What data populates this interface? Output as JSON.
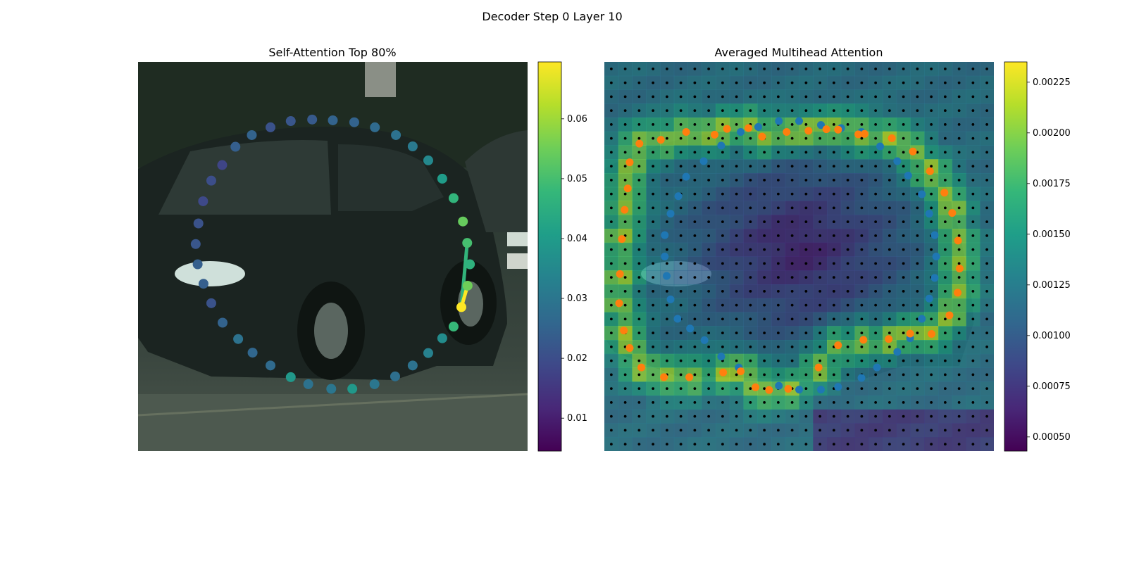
{
  "figure": {
    "suptitle": "Decoder Step 0 Layer 10"
  },
  "colormap_stops": [
    "#440154",
    "#482878",
    "#3e4989",
    "#31688e",
    "#26828e",
    "#1f9e89",
    "#35b779",
    "#6ece58",
    "#b5de2b",
    "#fde725"
  ],
  "chart_data": [
    {
      "type": "scatter",
      "title": "Self-Attention Top 80%",
      "background": "photo of a dark hatchback car on a street",
      "xlim": [
        0,
        1
      ],
      "ylim": [
        1,
        0
      ],
      "colorbar": {
        "min": 0.0045,
        "max": 0.0695,
        "ticks": [
          0.01,
          0.02,
          0.03,
          0.04,
          0.05,
          0.06
        ],
        "tick_labels": [
          "0.01",
          "0.02",
          "0.03",
          "0.04",
          "0.05",
          "0.06"
        ]
      },
      "points": [
        {
          "x": 0.5,
          "y": 0.15,
          "v": 0.025
        },
        {
          "x": 0.555,
          "y": 0.155,
          "v": 0.025
        },
        {
          "x": 0.608,
          "y": 0.168,
          "v": 0.027
        },
        {
          "x": 0.662,
          "y": 0.188,
          "v": 0.029
        },
        {
          "x": 0.705,
          "y": 0.217,
          "v": 0.031
        },
        {
          "x": 0.745,
          "y": 0.253,
          "v": 0.035
        },
        {
          "x": 0.781,
          "y": 0.3,
          "v": 0.04
        },
        {
          "x": 0.81,
          "y": 0.35,
          "v": 0.047
        },
        {
          "x": 0.834,
          "y": 0.41,
          "v": 0.054
        },
        {
          "x": 0.845,
          "y": 0.465,
          "v": 0.05
        },
        {
          "x": 0.852,
          "y": 0.52,
          "v": 0.046
        },
        {
          "x": 0.846,
          "y": 0.575,
          "v": 0.055
        },
        {
          "x": 0.83,
          "y": 0.63,
          "v": 0.0695
        },
        {
          "x": 0.81,
          "y": 0.68,
          "v": 0.048
        },
        {
          "x": 0.781,
          "y": 0.71,
          "v": 0.036
        },
        {
          "x": 0.745,
          "y": 0.748,
          "v": 0.033
        },
        {
          "x": 0.705,
          "y": 0.78,
          "v": 0.029
        },
        {
          "x": 0.66,
          "y": 0.808,
          "v": 0.028
        },
        {
          "x": 0.607,
          "y": 0.828,
          "v": 0.03
        },
        {
          "x": 0.55,
          "y": 0.84,
          "v": 0.039
        },
        {
          "x": 0.496,
          "y": 0.84,
          "v": 0.03
        },
        {
          "x": 0.437,
          "y": 0.828,
          "v": 0.029
        },
        {
          "x": 0.392,
          "y": 0.81,
          "v": 0.039
        },
        {
          "x": 0.34,
          "y": 0.78,
          "v": 0.027
        },
        {
          "x": 0.294,
          "y": 0.747,
          "v": 0.026
        },
        {
          "x": 0.257,
          "y": 0.712,
          "v": 0.029
        },
        {
          "x": 0.217,
          "y": 0.67,
          "v": 0.025
        },
        {
          "x": 0.188,
          "y": 0.62,
          "v": 0.021
        },
        {
          "x": 0.168,
          "y": 0.57,
          "v": 0.024
        },
        {
          "x": 0.153,
          "y": 0.52,
          "v": 0.024
        },
        {
          "x": 0.148,
          "y": 0.468,
          "v": 0.022
        },
        {
          "x": 0.155,
          "y": 0.415,
          "v": 0.021
        },
        {
          "x": 0.167,
          "y": 0.358,
          "v": 0.019
        },
        {
          "x": 0.188,
          "y": 0.305,
          "v": 0.02
        },
        {
          "x": 0.216,
          "y": 0.265,
          "v": 0.018
        },
        {
          "x": 0.25,
          "y": 0.218,
          "v": 0.024
        },
        {
          "x": 0.292,
          "y": 0.188,
          "v": 0.025
        },
        {
          "x": 0.34,
          "y": 0.168,
          "v": 0.021
        },
        {
          "x": 0.392,
          "y": 0.152,
          "v": 0.022
        },
        {
          "x": 0.447,
          "y": 0.148,
          "v": 0.023
        }
      ],
      "links": [
        {
          "from": [
            0.83,
            0.63
          ],
          "to": [
            0.845,
            0.465
          ],
          "v": 0.047
        },
        {
          "from": [
            0.83,
            0.63
          ],
          "to": [
            0.846,
            0.575
          ],
          "v": 0.0695
        }
      ]
    },
    {
      "type": "heatmap",
      "title": "Averaged Multihead Attention",
      "background": "same car photo under a heatmap overlay",
      "rows": 28,
      "cols": 28,
      "colorbar": {
        "min": 0.00043,
        "max": 0.00235,
        "ticks": [
          0.0005,
          0.00075,
          0.001,
          0.00125,
          0.0015,
          0.00175,
          0.002,
          0.00225
        ],
        "tick_labels": [
          "0.00050",
          "0.00075",
          "0.00100",
          "0.00125",
          "0.00150",
          "0.00175",
          "0.00200",
          "0.00225"
        ]
      },
      "series": [
        {
          "color": "#1f77b4",
          "points": [
            [
              0.395,
              0.167
            ],
            [
              0.448,
              0.152
            ],
            [
              0.5,
              0.152
            ],
            [
              0.556,
              0.162
            ],
            [
              0.608,
              0.17
            ],
            [
              0.66,
              0.18
            ],
            [
              0.708,
              0.217
            ],
            [
              0.752,
              0.255
            ],
            [
              0.78,
              0.292
            ],
            [
              0.815,
              0.34
            ],
            [
              0.834,
              0.39
            ],
            [
              0.848,
              0.445
            ],
            [
              0.852,
              0.5
            ],
            [
              0.848,
              0.555
            ],
            [
              0.834,
              0.608
            ],
            [
              0.815,
              0.66
            ],
            [
              0.785,
              0.71
            ],
            [
              0.752,
              0.745
            ],
            [
              0.7,
              0.785
            ],
            [
              0.66,
              0.812
            ],
            [
              0.6,
              0.835
            ],
            [
              0.556,
              0.842
            ],
            [
              0.5,
              0.842
            ],
            [
              0.448,
              0.832
            ],
            [
              0.345,
              0.785
            ],
            [
              0.3,
              0.757
            ],
            [
              0.257,
              0.715
            ],
            [
              0.22,
              0.685
            ],
            [
              0.188,
              0.66
            ],
            [
              0.17,
              0.61
            ],
            [
              0.16,
              0.55
            ],
            [
              0.155,
              0.5
            ],
            [
              0.155,
              0.445
            ],
            [
              0.17,
              0.39
            ],
            [
              0.19,
              0.345
            ],
            [
              0.21,
              0.295
            ],
            [
              0.255,
              0.255
            ],
            [
              0.3,
              0.215
            ],
            [
              0.35,
              0.18
            ]
          ]
        },
        {
          "color": "#ff7f0e",
          "points": [
            [
              0.37,
              0.17
            ],
            [
              0.405,
              0.192
            ],
            [
              0.468,
              0.18
            ],
            [
              0.524,
              0.177
            ],
            [
              0.57,
              0.173
            ],
            [
              0.6,
              0.174
            ],
            [
              0.652,
              0.186
            ],
            [
              0.668,
              0.185
            ],
            [
              0.738,
              0.196
            ],
            [
              0.792,
              0.23
            ],
            [
              0.836,
              0.281
            ],
            [
              0.873,
              0.336
            ],
            [
              0.893,
              0.388
            ],
            [
              0.908,
              0.459
            ],
            [
              0.912,
              0.531
            ],
            [
              0.907,
              0.593
            ],
            [
              0.886,
              0.651
            ],
            [
              0.84,
              0.699
            ],
            [
              0.785,
              0.698
            ],
            [
              0.73,
              0.712
            ],
            [
              0.665,
              0.714
            ],
            [
              0.6,
              0.728
            ],
            [
              0.55,
              0.785
            ],
            [
              0.472,
              0.84
            ],
            [
              0.423,
              0.843
            ],
            [
              0.388,
              0.836
            ],
            [
              0.35,
              0.795
            ],
            [
              0.305,
              0.798
            ],
            [
              0.218,
              0.81
            ],
            [
              0.153,
              0.81
            ],
            [
              0.095,
              0.785
            ],
            [
              0.065,
              0.735
            ],
            [
              0.05,
              0.69
            ],
            [
              0.038,
              0.62
            ],
            [
              0.04,
              0.545
            ],
            [
              0.045,
              0.455
            ],
            [
              0.052,
              0.38
            ],
            [
              0.06,
              0.325
            ],
            [
              0.065,
              0.258
            ],
            [
              0.09,
              0.21
            ],
            [
              0.145,
              0.2
            ],
            [
              0.21,
              0.18
            ],
            [
              0.283,
              0.187
            ],
            [
              0.315,
              0.172
            ]
          ]
        }
      ]
    }
  ]
}
